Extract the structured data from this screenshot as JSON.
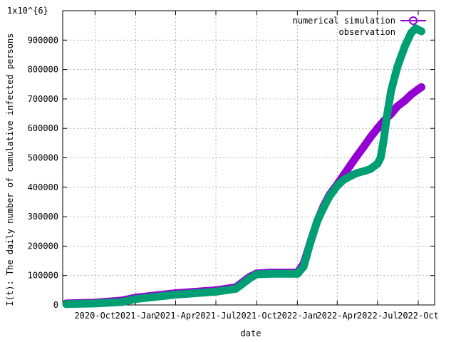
{
  "chart_data": {
    "type": "scatter",
    "xlabel": "date",
    "ylabel": "I(t): The daily number of cumulative infected persons",
    "y_multiplier_label": "1x10^{6}",
    "x_tick_labels": [
      "2020-Oct",
      "2021-Jan",
      "2021-Apr",
      "2021-Jul",
      "2021-Oct",
      "2022-Jan",
      "2022-Apr",
      "2022-Jul",
      "2022-Oct"
    ],
    "y_tick_labels": [
      "0",
      "100000",
      "200000",
      "300000",
      "400000",
      "500000",
      "600000",
      "700000",
      "800000",
      "900000"
    ],
    "ylim": [
      0,
      1000000
    ],
    "xlim": [
      "2020-07-20",
      "2022-11-07"
    ],
    "grid": true,
    "legend_position": "top-right",
    "series": [
      {
        "name": "numerical simulation",
        "color": "#9400d3",
        "marker": "circle",
        "x": [
          "2020-07-28",
          "2020-10-01",
          "2020-12-01",
          "2021-01-01",
          "2021-04-01",
          "2021-07-01",
          "2021-08-15",
          "2021-09-15",
          "2021-10-01",
          "2021-11-01",
          "2022-01-01",
          "2022-01-15",
          "2022-02-01",
          "2022-02-15",
          "2022-03-01",
          "2022-03-15",
          "2022-04-01",
          "2022-04-15",
          "2022-05-01",
          "2022-05-15",
          "2022-06-01",
          "2022-06-15",
          "2022-07-01",
          "2022-07-15",
          "2022-08-01",
          "2022-08-15",
          "2022-09-01",
          "2022-09-15",
          "2022-10-01",
          "2022-10-08"
        ],
        "values": [
          5000,
          8000,
          15000,
          25000,
          40000,
          50000,
          60000,
          95000,
          107000,
          110000,
          110000,
          140000,
          220000,
          285000,
          335000,
          375000,
          410000,
          440000,
          475000,
          505000,
          540000,
          570000,
          600000,
          625000,
          650000,
          675000,
          695000,
          715000,
          733000,
          740000
        ]
      },
      {
        "name": "observation",
        "color": "#009e73",
        "marker": "circle",
        "x": [
          "2020-07-28",
          "2020-10-01",
          "2020-12-01",
          "2021-01-01",
          "2021-04-01",
          "2021-07-01",
          "2021-08-15",
          "2021-09-15",
          "2021-10-01",
          "2021-11-01",
          "2022-01-01",
          "2022-01-15",
          "2022-02-01",
          "2022-02-15",
          "2022-03-01",
          "2022-03-15",
          "2022-04-01",
          "2022-04-15",
          "2022-05-01",
          "2022-05-15",
          "2022-06-01",
          "2022-06-15",
          "2022-07-01",
          "2022-07-08",
          "2022-07-15",
          "2022-07-22",
          "2022-08-01",
          "2022-08-15",
          "2022-09-01",
          "2022-09-15",
          "2022-09-25",
          "2022-10-01",
          "2022-10-08"
        ],
        "values": [
          3000,
          5000,
          10000,
          20000,
          35000,
          45000,
          55000,
          90000,
          104000,
          106000,
          106000,
          130000,
          220000,
          285000,
          330000,
          370000,
          405000,
          425000,
          438000,
          448000,
          455000,
          462000,
          480000,
          500000,
          560000,
          640000,
          730000,
          810000,
          880000,
          925000,
          940000,
          935000,
          930000
        ]
      }
    ]
  }
}
